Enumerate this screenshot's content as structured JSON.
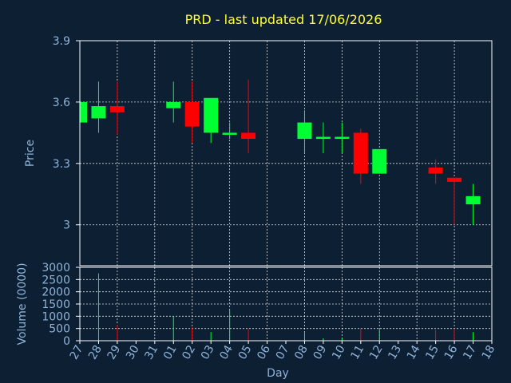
{
  "chart_data": [
    {
      "type": "candlestick",
      "title": "PRD - last updated 17/06/2026",
      "ylabel": "Price",
      "ylim": [
        2.8,
        3.9
      ],
      "yticks": [
        "3",
        "3.3",
        "3.6",
        "3.9"
      ],
      "ytick_values": [
        3.0,
        3.3,
        3.6,
        3.9
      ],
      "grid": true,
      "up_color": "#00ff33",
      "down_color": "#ff0000",
      "candles": [
        {
          "day": "27",
          "open": 3.5,
          "high": 3.6,
          "low": 3.5,
          "close": 3.6
        },
        {
          "day": "28",
          "open": 3.52,
          "high": 3.7,
          "low": 3.45,
          "close": 3.58
        },
        {
          "day": "29",
          "open": 3.58,
          "high": 3.7,
          "low": 3.44,
          "close": 3.55
        },
        {
          "day": "01",
          "open": 3.57,
          "high": 3.7,
          "low": 3.5,
          "close": 3.6
        },
        {
          "day": "02",
          "open": 3.6,
          "high": 3.7,
          "low": 3.4,
          "close": 3.48
        },
        {
          "day": "03",
          "open": 3.45,
          "high": 3.62,
          "low": 3.4,
          "close": 3.62
        },
        {
          "day": "04",
          "open": 3.44,
          "high": 3.5,
          "low": 3.42,
          "close": 3.45
        },
        {
          "day": "05",
          "open": 3.45,
          "high": 3.71,
          "low": 3.35,
          "close": 3.42
        },
        {
          "day": "08",
          "open": 3.42,
          "high": 3.56,
          "low": 3.35,
          "close": 3.5
        },
        {
          "day": "09",
          "open": 3.42,
          "high": 3.5,
          "low": 3.35,
          "close": 3.43
        },
        {
          "day": "10",
          "open": 3.42,
          "high": 3.5,
          "low": 3.35,
          "close": 3.43
        },
        {
          "day": "11",
          "open": 3.45,
          "high": 3.47,
          "low": 3.2,
          "close": 3.25
        },
        {
          "day": "12",
          "open": 3.25,
          "high": 3.37,
          "low": 3.25,
          "close": 3.37
        },
        {
          "day": "15",
          "open": 3.28,
          "high": 3.32,
          "low": 3.2,
          "close": 3.25
        },
        {
          "day": "16",
          "open": 3.23,
          "high": 3.23,
          "low": 3.0,
          "close": 3.21
        },
        {
          "day": "17",
          "open": 3.1,
          "high": 3.2,
          "low": 3.0,
          "close": 3.14
        }
      ]
    },
    {
      "type": "bar",
      "xlabel": "Day",
      "ylabel": "Volume (0000)",
      "ylim": [
        0,
        3000
      ],
      "yticks": [
        "0",
        "500",
        "1000",
        "1500",
        "2000",
        "2500",
        "3000"
      ],
      "ytick_values": [
        0,
        500,
        1000,
        1500,
        2000,
        2500,
        3000
      ],
      "categories": [
        "27",
        "28",
        "29",
        "30",
        "31",
        "01",
        "02",
        "03",
        "04",
        "05",
        "06",
        "07",
        "08",
        "09",
        "10",
        "11",
        "12",
        "13",
        "14",
        "15",
        "16",
        "17",
        "18"
      ],
      "volumes": [
        {
          "day": "28",
          "value": 2750,
          "dir": "up"
        },
        {
          "day": "29",
          "value": 650,
          "dir": "down"
        },
        {
          "day": "01",
          "value": 1000,
          "dir": "up"
        },
        {
          "day": "02",
          "value": 550,
          "dir": "down"
        },
        {
          "day": "03",
          "value": 350,
          "dir": "up"
        },
        {
          "day": "04",
          "value": 1250,
          "dir": "up"
        },
        {
          "day": "05",
          "value": 500,
          "dir": "down"
        },
        {
          "day": "08",
          "value": 350,
          "dir": "up"
        },
        {
          "day": "09",
          "value": 100,
          "dir": "up"
        },
        {
          "day": "10",
          "value": 100,
          "dir": "up"
        },
        {
          "day": "11",
          "value": 500,
          "dir": "down"
        },
        {
          "day": "12",
          "value": 450,
          "dir": "up"
        },
        {
          "day": "15",
          "value": 450,
          "dir": "down"
        },
        {
          "day": "16",
          "value": 500,
          "dir": "down"
        },
        {
          "day": "17",
          "value": 350,
          "dir": "up"
        }
      ]
    }
  ]
}
